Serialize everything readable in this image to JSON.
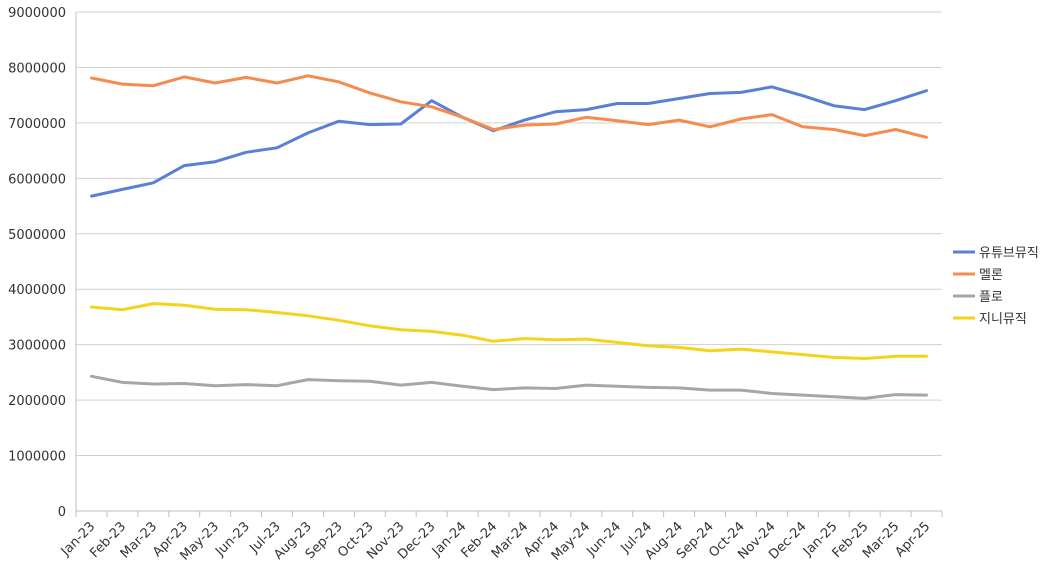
{
  "chart_data": {
    "type": "line",
    "title": "",
    "xlabel": "",
    "ylabel": "",
    "ylim": [
      0,
      9000000
    ],
    "y_ticks": [
      "0",
      "1000000",
      "2000000",
      "3000000",
      "4000000",
      "5000000",
      "6000000",
      "7000000",
      "8000000",
      "9000000"
    ],
    "grid": "horizontal",
    "legend_position": "right",
    "categories": [
      "Jan-23",
      "Feb-23",
      "Mar-23",
      "Apr-23",
      "May-23",
      "Jun-23",
      "Jul-23",
      "Aug-23",
      "Sep-23",
      "Oct-23",
      "Nov-23",
      "Dec-23",
      "Jan-24",
      "Feb-24",
      "Mar-24",
      "Apr-24",
      "May-24",
      "Jun-24",
      "Jul-24",
      "Aug-24",
      "Sep-24",
      "Oct-24",
      "Nov-24",
      "Dec-24",
      "Jan-25",
      "Feb-25",
      "Mar-25",
      "Apr-25"
    ],
    "series": [
      {
        "name": "유튜브뮤직",
        "color": "#5b7fd6",
        "values": [
          5680000,
          5800000,
          5920000,
          6230000,
          6300000,
          6470000,
          6550000,
          6820000,
          7030000,
          6970000,
          6980000,
          7400000,
          7100000,
          6860000,
          7050000,
          7200000,
          7240000,
          7350000,
          7350000,
          7440000,
          7530000,
          7550000,
          7650000,
          7490000,
          7310000,
          7240000,
          7400000,
          7580000
        ]
      },
      {
        "name": "멜론",
        "color": "#f58b4c",
        "values": [
          7810000,
          7700000,
          7670000,
          7830000,
          7720000,
          7820000,
          7720000,
          7850000,
          7740000,
          7540000,
          7380000,
          7290000,
          7100000,
          6880000,
          6960000,
          6980000,
          7100000,
          7040000,
          6970000,
          7050000,
          6930000,
          7070000,
          7150000,
          6930000,
          6880000,
          6770000,
          6880000,
          6740000
        ]
      },
      {
        "name": "플로",
        "color": "#a6a6a6",
        "values": [
          2430000,
          2320000,
          2290000,
          2300000,
          2260000,
          2280000,
          2260000,
          2370000,
          2350000,
          2340000,
          2270000,
          2320000,
          2250000,
          2190000,
          2220000,
          2210000,
          2270000,
          2250000,
          2230000,
          2220000,
          2180000,
          2180000,
          2120000,
          2090000,
          2060000,
          2030000,
          2100000,
          2090000
        ]
      },
      {
        "name": "지니뮤직",
        "color": "#f5d21c",
        "values": [
          3680000,
          3630000,
          3740000,
          3710000,
          3640000,
          3630000,
          3580000,
          3520000,
          3440000,
          3340000,
          3270000,
          3240000,
          3170000,
          3060000,
          3110000,
          3090000,
          3100000,
          3040000,
          2980000,
          2950000,
          2890000,
          2920000,
          2870000,
          2820000,
          2770000,
          2750000,
          2790000,
          2790000
        ]
      }
    ]
  }
}
